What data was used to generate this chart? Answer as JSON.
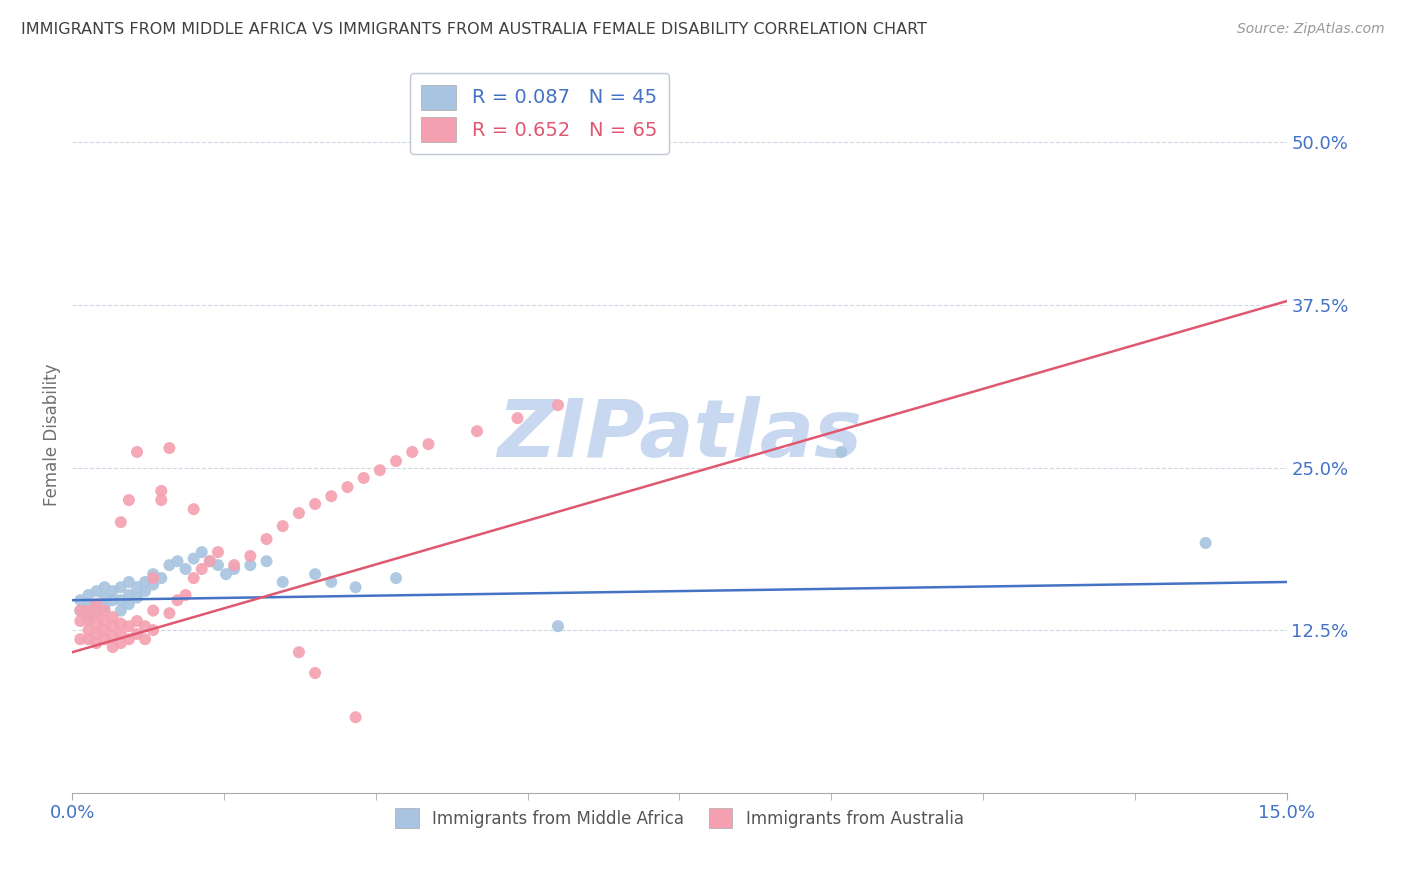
{
  "title": "IMMIGRANTS FROM MIDDLE AFRICA VS IMMIGRANTS FROM AUSTRALIA FEMALE DISABILITY CORRELATION CHART",
  "source": "Source: ZipAtlas.com",
  "ylabel": "Female Disability",
  "xlim": [
    0.0,
    0.15
  ],
  "ylim": [
    0.0,
    0.55
  ],
  "yticks": [
    0.125,
    0.25,
    0.375,
    0.5
  ],
  "ytick_labels": [
    "12.5%",
    "25.0%",
    "37.5%",
    "50.0%"
  ],
  "xtick_labels": [
    "0.0%",
    "15.0%"
  ],
  "r_blue": 0.087,
  "n_blue": 45,
  "r_pink": 0.652,
  "n_pink": 65,
  "blue_color": "#a8c4e0",
  "pink_color": "#f4a0b0",
  "blue_line_color": "#4472c4",
  "pink_line_color": "#e05870",
  "title_color": "#404040",
  "axis_label_color": "#4472c4",
  "watermark_color": "#c8d8f0",
  "background_color": "#ffffff",
  "legend_label_blue": "Immigrants from Middle Africa",
  "legend_label_pink": "Immigrants from Australia",
  "blue_scatter_x": [
    0.001,
    0.001,
    0.002,
    0.002,
    0.002,
    0.003,
    0.003,
    0.003,
    0.004,
    0.004,
    0.004,
    0.005,
    0.005,
    0.006,
    0.006,
    0.006,
    0.007,
    0.007,
    0.007,
    0.008,
    0.008,
    0.009,
    0.009,
    0.01,
    0.01,
    0.011,
    0.012,
    0.013,
    0.014,
    0.015,
    0.016,
    0.017,
    0.018,
    0.019,
    0.02,
    0.022,
    0.024,
    0.026,
    0.03,
    0.032,
    0.035,
    0.04,
    0.06,
    0.095,
    0.14
  ],
  "blue_scatter_y": [
    0.14,
    0.148,
    0.135,
    0.145,
    0.152,
    0.138,
    0.145,
    0.155,
    0.143,
    0.15,
    0.158,
    0.148,
    0.155,
    0.14,
    0.148,
    0.158,
    0.145,
    0.152,
    0.162,
    0.15,
    0.158,
    0.155,
    0.162,
    0.16,
    0.168,
    0.165,
    0.175,
    0.178,
    0.172,
    0.18,
    0.185,
    0.178,
    0.175,
    0.168,
    0.172,
    0.175,
    0.178,
    0.162,
    0.168,
    0.162,
    0.158,
    0.165,
    0.128,
    0.262,
    0.192
  ],
  "pink_scatter_x": [
    0.001,
    0.001,
    0.001,
    0.002,
    0.002,
    0.002,
    0.002,
    0.003,
    0.003,
    0.003,
    0.003,
    0.003,
    0.004,
    0.004,
    0.004,
    0.004,
    0.005,
    0.005,
    0.005,
    0.005,
    0.006,
    0.006,
    0.006,
    0.006,
    0.007,
    0.007,
    0.007,
    0.008,
    0.008,
    0.008,
    0.009,
    0.009,
    0.01,
    0.01,
    0.01,
    0.011,
    0.011,
    0.012,
    0.012,
    0.013,
    0.014,
    0.015,
    0.015,
    0.016,
    0.017,
    0.018,
    0.02,
    0.022,
    0.024,
    0.026,
    0.028,
    0.03,
    0.032,
    0.034,
    0.036,
    0.038,
    0.04,
    0.042,
    0.044,
    0.05,
    0.055,
    0.06,
    0.028,
    0.03,
    0.035
  ],
  "pink_scatter_y": [
    0.132,
    0.14,
    0.118,
    0.125,
    0.133,
    0.14,
    0.118,
    0.115,
    0.122,
    0.13,
    0.138,
    0.145,
    0.118,
    0.125,
    0.132,
    0.14,
    0.112,
    0.12,
    0.128,
    0.135,
    0.115,
    0.122,
    0.13,
    0.208,
    0.118,
    0.128,
    0.225,
    0.122,
    0.132,
    0.262,
    0.118,
    0.128,
    0.125,
    0.14,
    0.165,
    0.232,
    0.225,
    0.138,
    0.265,
    0.148,
    0.152,
    0.218,
    0.165,
    0.172,
    0.178,
    0.185,
    0.175,
    0.182,
    0.195,
    0.205,
    0.215,
    0.222,
    0.228,
    0.235,
    0.242,
    0.248,
    0.255,
    0.262,
    0.268,
    0.278,
    0.288,
    0.298,
    0.108,
    0.092,
    0.058
  ],
  "blue_trend_x": [
    0.0,
    0.15
  ],
  "blue_trend_y": [
    0.148,
    0.162
  ],
  "pink_trend_x": [
    0.0,
    0.15
  ],
  "pink_trend_y": [
    0.108,
    0.378
  ]
}
